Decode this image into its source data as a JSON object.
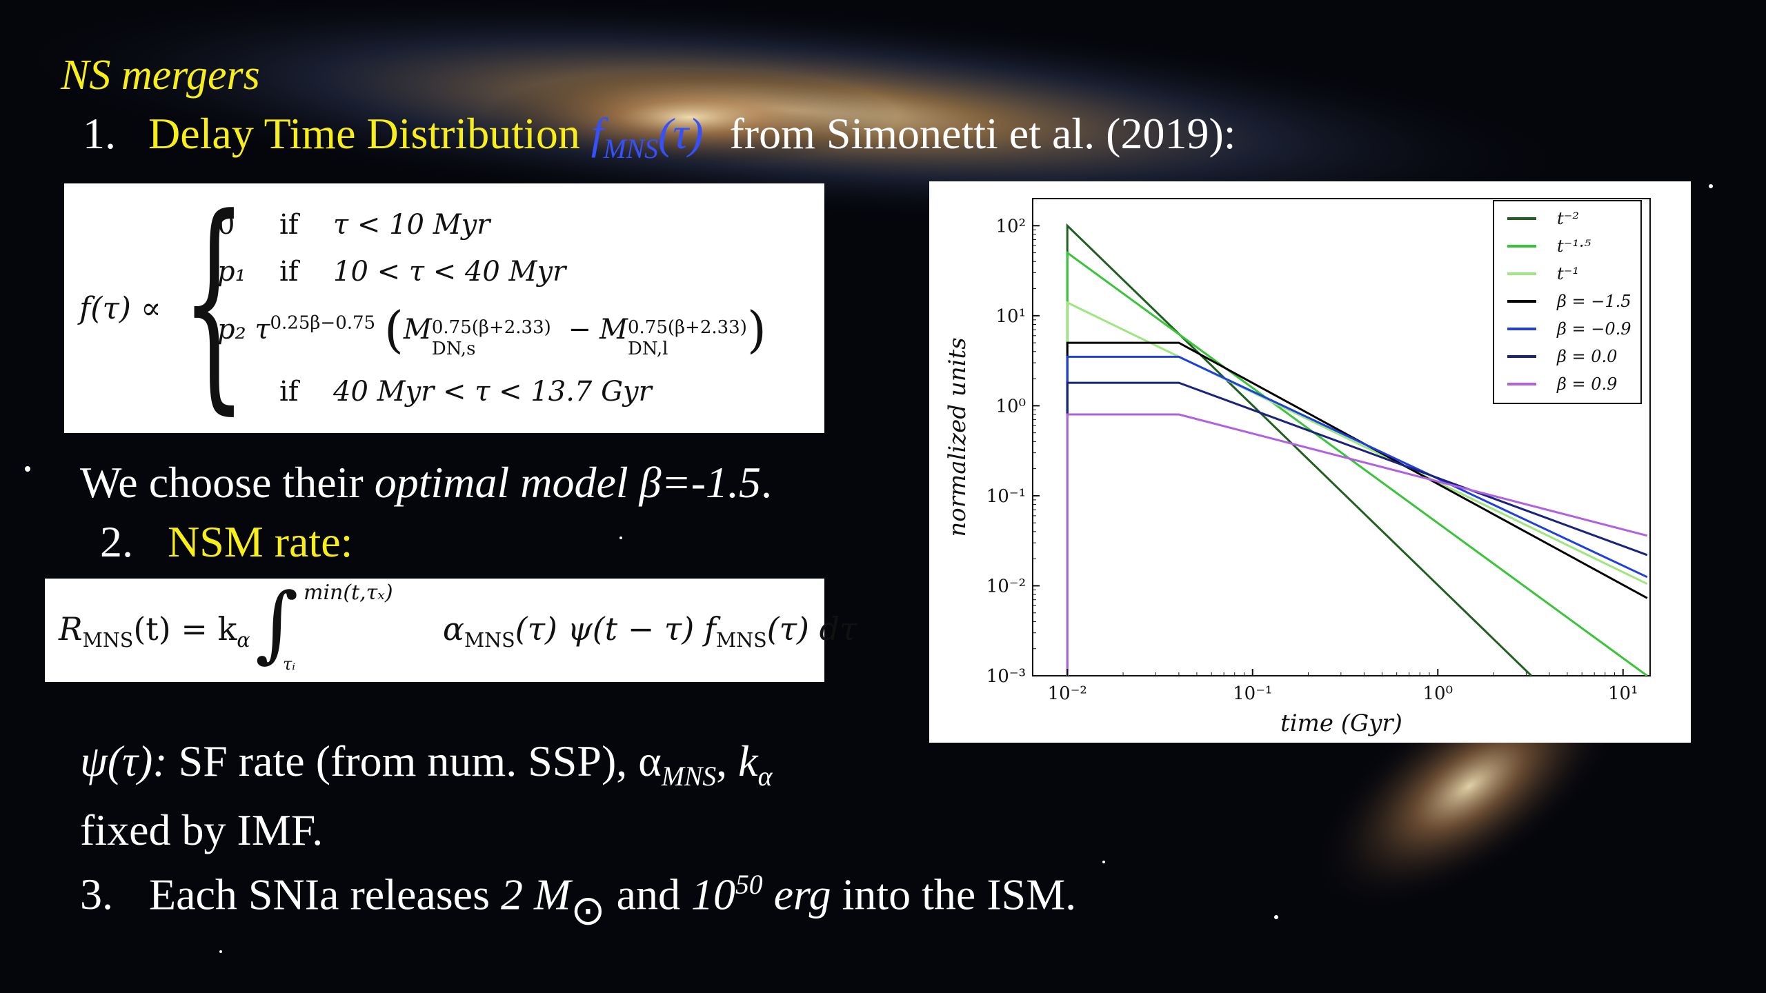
{
  "slide": {
    "heading": "NS mergers",
    "item1": {
      "num": "1.",
      "title": "Delay Time Distribution",
      "func_f": "f",
      "func_sub": "MNS",
      "func_arg": "(τ)",
      "source": "from Simonetti et al. (2019):"
    },
    "formula1": {
      "lhs": "f(τ) ∝",
      "rows": [
        {
          "coef": "0",
          "cond": "if",
          "range": "τ < 10 Myr"
        },
        {
          "coef": "p₁",
          "cond": "if",
          "range": "10 < τ < 40 Myr"
        },
        {
          "coef": "p₂ τ",
          "exp": "0.25β−0.75",
          "m1": "M",
          "m1_sup": "0.75(β+2.33)",
          "m1_sub": "DN,s",
          "minus": "−",
          "m2": "M",
          "m2_sup": "0.75(β+2.33)",
          "m2_sub": "DN,l"
        },
        {
          "coef": "",
          "cond": "if",
          "range": "40 Myr < τ < 13.7 Gyr"
        }
      ]
    },
    "choose_line": {
      "prefix": "We choose their ",
      "italic": "optimal model β=-1.5",
      "suffix": "."
    },
    "item2": {
      "num": "2.",
      "title": "NSM rate:"
    },
    "formula2": {
      "lhs_R": "R",
      "lhs_sub": "MNS",
      "lhs_arg": "(t) = k",
      "lhs_k_sub": "α",
      "int_upper": "min(t,τₓ)",
      "int_lower": "τᵢ",
      "integrand_a": "α",
      "integrand_a_sub": "MNS",
      "integrand_mid": "(τ) ψ(t − τ) f",
      "integrand_f_sub": "MNS",
      "integrand_end": "(τ) dτ"
    },
    "psi_line": {
      "italic": "ψ(τ):",
      "text": " SF rate (from num. SSP), α",
      "alpha_sub": "MNS",
      "comma": ", ",
      "k": "k",
      "k_sub": "α"
    },
    "psi_line2": "fixed by IMF.",
    "item3": {
      "num": "3.",
      "text_a": "Each SNIa releases ",
      "mass": "2 M",
      "mass_sub": "⊙",
      "and": " and ",
      "energy": "10",
      "energy_sup": "50",
      "erg": " erg",
      "text_b": " into the ISM."
    }
  },
  "chart_data": {
    "type": "line",
    "title": "",
    "xlabel": "time (Gyr)",
    "ylabel": "normalized units",
    "x_scale": "log",
    "y_scale": "log",
    "xlim": [
      0.0065,
      14
    ],
    "ylim": [
      0.001,
      200
    ],
    "x_ticks": [
      {
        "value": 0.01,
        "label": "10⁻²"
      },
      {
        "value": 0.1,
        "label": "10⁻¹"
      },
      {
        "value": 1,
        "label": "10⁰"
      },
      {
        "value": 10,
        "label": "10¹"
      }
    ],
    "y_ticks": [
      {
        "value": 0.001,
        "label": "10⁻³"
      },
      {
        "value": 0.01,
        "label": "10⁻²"
      },
      {
        "value": 0.1,
        "label": "10⁻¹"
      },
      {
        "value": 1,
        "label": "10⁰"
      },
      {
        "value": 10,
        "label": "10¹"
      },
      {
        "value": 100,
        "label": "10²"
      }
    ],
    "grid": false,
    "legend_position": "top-right",
    "series": [
      {
        "name": "t⁻²",
        "color": "#1f5f1f",
        "x": [
          0.01,
          0.01,
          3.2
        ],
        "y": [
          0.001,
          100,
          0.001
        ]
      },
      {
        "name": "t⁻¹·⁵",
        "color": "#39c439",
        "x": [
          0.01,
          0.01,
          13.5
        ],
        "y": [
          0.001,
          50,
          0.001
        ]
      },
      {
        "name": "t⁻¹",
        "color": "#9ee67e",
        "x": [
          0.01,
          0.01,
          13.5
        ],
        "y": [
          0.001,
          14,
          0.0105
        ]
      },
      {
        "name": "β = −1.5",
        "color": "#000000",
        "x": [
          0.01,
          0.01,
          0.04,
          13.5
        ],
        "y": [
          0.8,
          5,
          5,
          0.0073
        ]
      },
      {
        "name": "β = −0.9",
        "color": "#1f3fe0",
        "x": [
          0.01,
          0.01,
          0.04,
          13.5
        ],
        "y": [
          0.8,
          3.5,
          3.5,
          0.0125
        ]
      },
      {
        "name": "β = 0.0",
        "color": "#1a237e",
        "x": [
          0.01,
          0.01,
          0.04,
          13.5
        ],
        "y": [
          0.8,
          1.8,
          1.8,
          0.022
        ]
      },
      {
        "name": "β = 0.9",
        "color": "#b060e0",
        "x": [
          0.01,
          0.01,
          0.04,
          13.5
        ],
        "y": [
          0.001,
          0.8,
          0.8,
          0.036
        ]
      }
    ]
  }
}
